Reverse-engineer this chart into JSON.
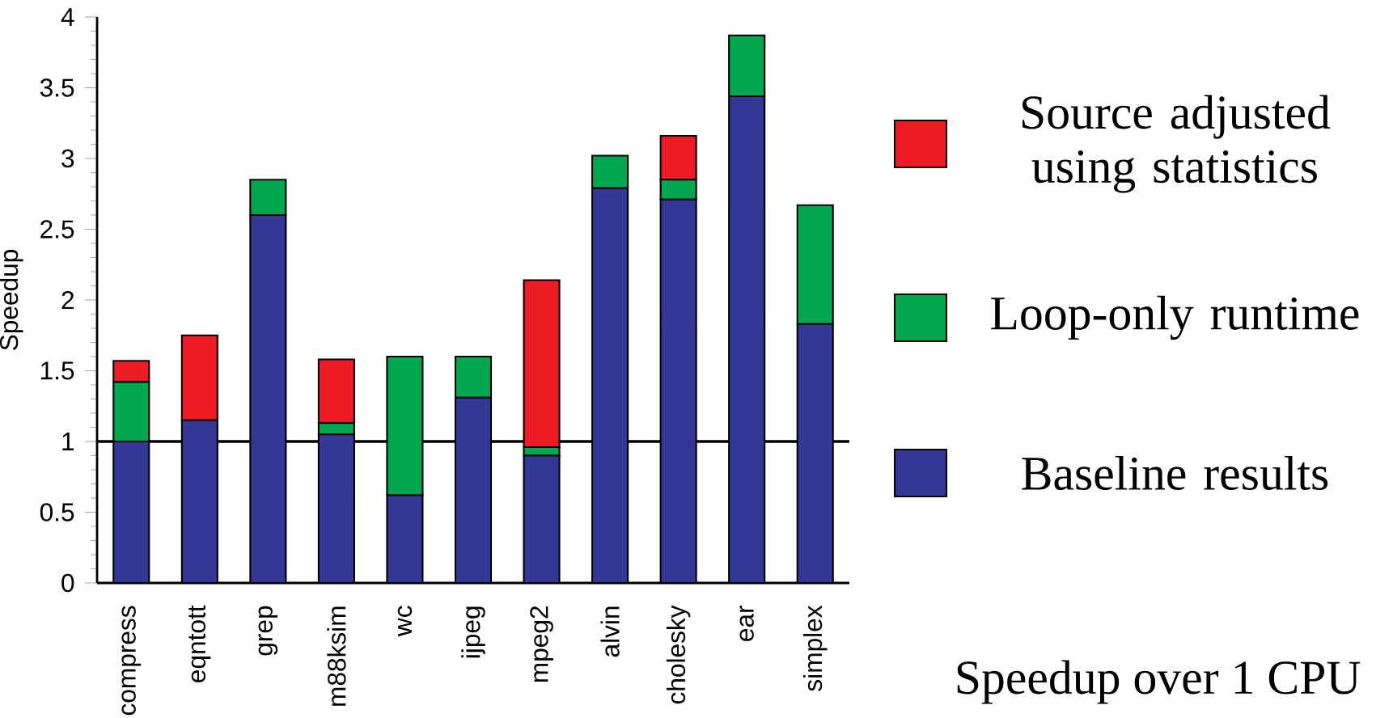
{
  "chart_data": {
    "type": "bar",
    "stacked": true,
    "ylabel": "Speedup",
    "categories": [
      "compress",
      "eqntott",
      "grep",
      "m88ksim",
      "wc",
      "ijpeg",
      "mpeg2",
      "alvin",
      "cholesky",
      "ear",
      "simplex"
    ],
    "series": [
      {
        "name": "Baseline results",
        "color": "#333895",
        "values": [
          1.0,
          1.15,
          2.6,
          1.05,
          0.62,
          1.31,
          0.9,
          2.79,
          2.71,
          3.44,
          1.83
        ]
      },
      {
        "name": "Loop-only runtime",
        "color": "#00a650",
        "values": [
          0.42,
          0,
          0.25,
          0.08,
          0.98,
          0.29,
          0.06,
          0.23,
          0.14,
          0.43,
          0.84
        ]
      },
      {
        "name": "Source adjusted using statistics",
        "color": "#ed1c24",
        "values": [
          0.15,
          0.6,
          0,
          0.45,
          0,
          0,
          1.18,
          0,
          0.31,
          0,
          0
        ]
      }
    ],
    "ylim": [
      0,
      4
    ],
    "yticks": [
      0,
      0.5,
      1,
      1.5,
      2,
      2.5,
      3,
      3.5,
      4
    ],
    "ref_lines": [
      {
        "axis": "y",
        "value": 1,
        "color": "#000000"
      }
    ],
    "legend": "right",
    "grid": false,
    "annotations": [
      "Speedup over 1 CPU"
    ]
  }
}
